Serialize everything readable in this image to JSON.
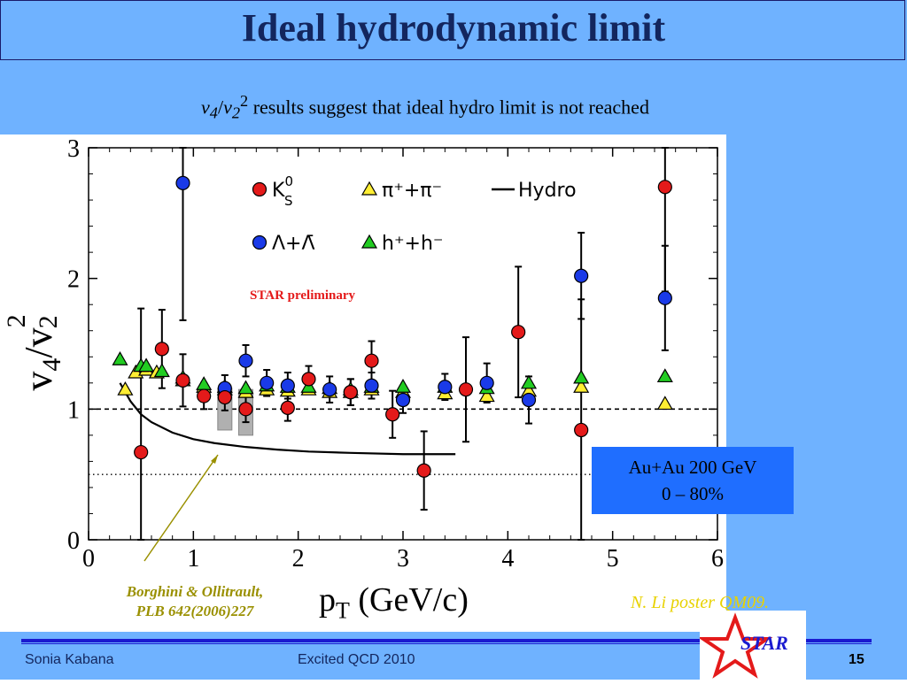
{
  "title": "Ideal hydrodynamic limit",
  "subtitle": {
    "v4": "v",
    "v4_sub": "4",
    "slash": "/",
    "v2": "v",
    "v2_sub": "2",
    "v2_sup": "2",
    "text": " results suggest that  ideal hydro limit is not reached"
  },
  "annotation": {
    "star_preliminary": "STAR preliminary",
    "reference_line1": "Borghini & Ollitrault,",
    "reference_line2": "PLB 642(2006)227",
    "poster": "N. Li poster QM09."
  },
  "au_box": {
    "line1": "Au+Au 200 GeV",
    "line2": "0 – 80%"
  },
  "footer": {
    "author": "Sonia Kabana",
    "conference": "Excited QCD 2010",
    "page": "15"
  },
  "logo": {
    "text": "STAR",
    "icon": "star-icon"
  },
  "colors": {
    "background": "#6fb2ff",
    "title": "#13265e",
    "k0s": "#e41a1a",
    "lambda": "#1a3ae8",
    "pion": "#ffee33",
    "hadron": "#22cc22",
    "au_box": "#1f6eff"
  },
  "chart_data": {
    "type": "scatter",
    "title": "",
    "xlabel": "p",
    "xlabel_sub": "T",
    "xlabel_unit": " (GeV/c)",
    "ylabel": "v",
    "ylabel_sub1": "4",
    "ylabel_mid": "/v",
    "ylabel_sup": "2",
    "ylabel_sub2": "2",
    "xlim": [
      0,
      6
    ],
    "ylim": [
      0,
      3
    ],
    "xticks": [
      "0",
      "1",
      "2",
      "3",
      "4",
      "5",
      "6"
    ],
    "yticks": [
      "0",
      "1",
      "2",
      "3"
    ],
    "reference_lines": [
      {
        "y": 1.0,
        "style": "dashed"
      },
      {
        "y": 0.5,
        "style": "dotted"
      }
    ],
    "legend": [
      {
        "label": "K",
        "sup": "0",
        "sub": "S",
        "marker": "circle",
        "color": "#e41a1a"
      },
      {
        "label": "π⁺+π⁻",
        "marker": "triangle",
        "color": "#ffee33"
      },
      {
        "label": "Hydro",
        "marker": "line",
        "color": "#000000"
      },
      {
        "label": "Λ+Λ̄",
        "marker": "circle",
        "color": "#1a3ae8"
      },
      {
        "label": "h⁺+h⁻",
        "marker": "triangle",
        "color": "#22cc22"
      }
    ],
    "series": [
      {
        "name": "K0S",
        "marker": "circle",
        "color": "#e41a1a",
        "x": [
          0.5,
          0.7,
          0.9,
          1.1,
          1.3,
          1.5,
          1.9,
          2.1,
          2.5,
          2.7,
          2.9,
          3.2,
          3.6,
          4.1,
          4.7,
          5.5
        ],
        "y": [
          0.67,
          1.46,
          1.22,
          1.1,
          1.09,
          1.0,
          1.01,
          1.23,
          1.13,
          1.37,
          0.96,
          0.53,
          1.15,
          1.59,
          0.84,
          2.7
        ],
        "err": [
          1.1,
          0.3,
          0.2,
          0.1,
          0.1,
          0.1,
          0.1,
          0.1,
          0.1,
          0.15,
          0.18,
          0.3,
          0.4,
          0.5,
          1.0,
          0.8
        ]
      },
      {
        "name": "Lambda",
        "marker": "circle",
        "color": "#1a3ae8",
        "x": [
          0.9,
          1.3,
          1.5,
          1.7,
          1.9,
          2.3,
          2.5,
          2.7,
          3.0,
          3.4,
          3.8,
          4.2,
          4.7,
          5.5
        ],
        "y": [
          2.73,
          1.16,
          1.37,
          1.2,
          1.18,
          1.15,
          1.13,
          1.18,
          1.07,
          1.17,
          1.2,
          1.07,
          2.02,
          1.85
        ],
        "err": [
          1.05,
          0.1,
          0.12,
          0.1,
          0.1,
          0.1,
          0.1,
          0.1,
          0.1,
          0.1,
          0.15,
          0.18,
          0.33,
          0.4
        ]
      },
      {
        "name": "pi",
        "marker": "triangle",
        "color": "#ffee33",
        "x": [
          0.35,
          0.45,
          0.55,
          0.65,
          0.9,
          1.1,
          1.3,
          1.5,
          1.7,
          1.9,
          2.1,
          2.3,
          2.5,
          2.7,
          3.0,
          3.4,
          3.8,
          4.2,
          4.7,
          5.5
        ],
        "y": [
          1.15,
          1.28,
          1.3,
          1.28,
          1.22,
          1.17,
          1.15,
          1.13,
          1.15,
          1.14,
          1.15,
          1.13,
          1.13,
          1.15,
          1.13,
          1.12,
          1.1,
          1.14,
          1.17,
          1.04
        ],
        "err": [
          0,
          0,
          0,
          0,
          0,
          0,
          0,
          0,
          0,
          0,
          0,
          0,
          0,
          0,
          0,
          0,
          0,
          0,
          0,
          0
        ]
      },
      {
        "name": "h",
        "marker": "triangle",
        "color": "#22cc22",
        "x": [
          0.3,
          0.5,
          0.55,
          0.7,
          0.9,
          1.1,
          1.3,
          1.5,
          1.7,
          1.9,
          2.1,
          2.3,
          2.5,
          2.7,
          3.0,
          3.4,
          3.8,
          4.2,
          4.7,
          5.5
        ],
        "y": [
          1.38,
          1.33,
          1.33,
          1.29,
          1.24,
          1.19,
          1.17,
          1.16,
          1.18,
          1.17,
          1.17,
          1.16,
          1.15,
          1.17,
          1.17,
          1.17,
          1.16,
          1.2,
          1.24,
          1.25
        ],
        "err": [
          0,
          0,
          0,
          0,
          0,
          0,
          0,
          0,
          0,
          0,
          0,
          0,
          0,
          0,
          0,
          0,
          0,
          0,
          0,
          0
        ]
      }
    ],
    "hydro": {
      "x": [
        0.3,
        0.4,
        0.5,
        0.6,
        0.8,
        1.0,
        1.2,
        1.5,
        1.8,
        2.1,
        2.5,
        3.0,
        3.5
      ],
      "y": [
        1.2,
        1.06,
        0.96,
        0.9,
        0.82,
        0.77,
        0.74,
        0.71,
        0.69,
        0.675,
        0.665,
        0.655,
        0.655
      ]
    },
    "systematic_bands": [
      {
        "x": 1.3,
        "ylow": 0.84,
        "yhigh": 1.16
      },
      {
        "x": 1.5,
        "ylow": 0.8,
        "yhigh": 1.15
      }
    ]
  }
}
